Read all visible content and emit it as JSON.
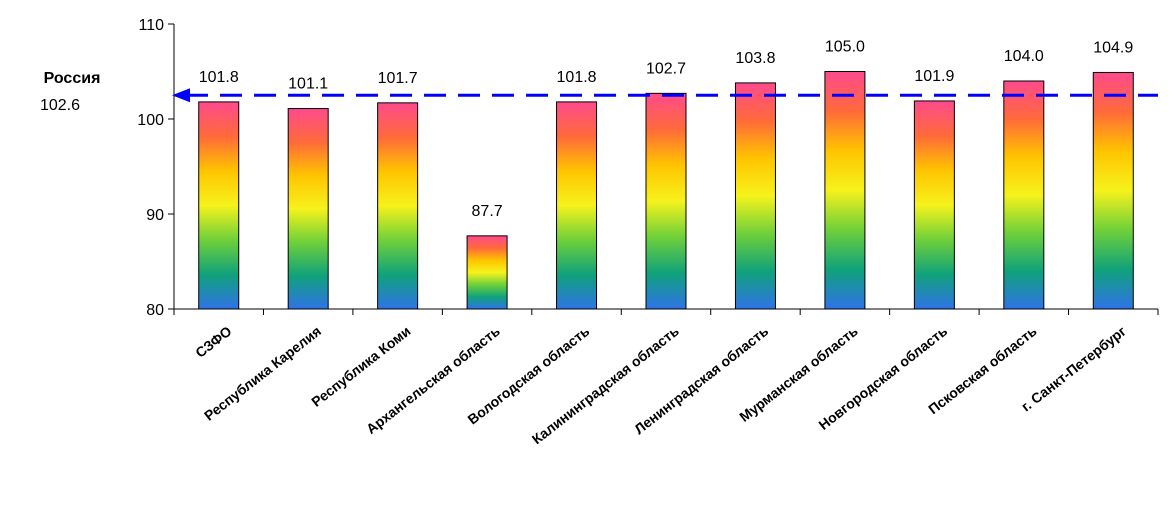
{
  "chart_data": {
    "type": "bar",
    "categories": [
      "СЗФО",
      "Республика Карелия",
      "Республика Коми",
      "Архангельская область",
      "Вологодская область",
      "Калининградская область",
      "Ленинградская область",
      "Мурманская область",
      "Новгородская область",
      "Псковская область",
      "г. Санкт-Петербург"
    ],
    "values": [
      101.8,
      101.1,
      101.7,
      87.7,
      101.8,
      102.7,
      103.8,
      105.0,
      101.9,
      104.0,
      104.9
    ],
    "value_labels": [
      "101.8",
      "101.1",
      "101.7",
      "87.7",
      "101.8",
      "102.7",
      "103.8",
      "105.0",
      "101.9",
      "104.0",
      "104.9"
    ],
    "ylim": [
      80,
      110
    ],
    "yticks": [
      "80",
      "90",
      "100",
      "110"
    ],
    "grid": false,
    "bar_gradient": [
      "#ff4a8d",
      "#ff6a3a",
      "#ffc400",
      "#f6f21c",
      "#6fd03a",
      "#10a27a",
      "#2f73e8"
    ],
    "reference_line": {
      "title": "Россия",
      "value": 102.6,
      "value_label": "102.6",
      "color": "#0000ff"
    }
  }
}
